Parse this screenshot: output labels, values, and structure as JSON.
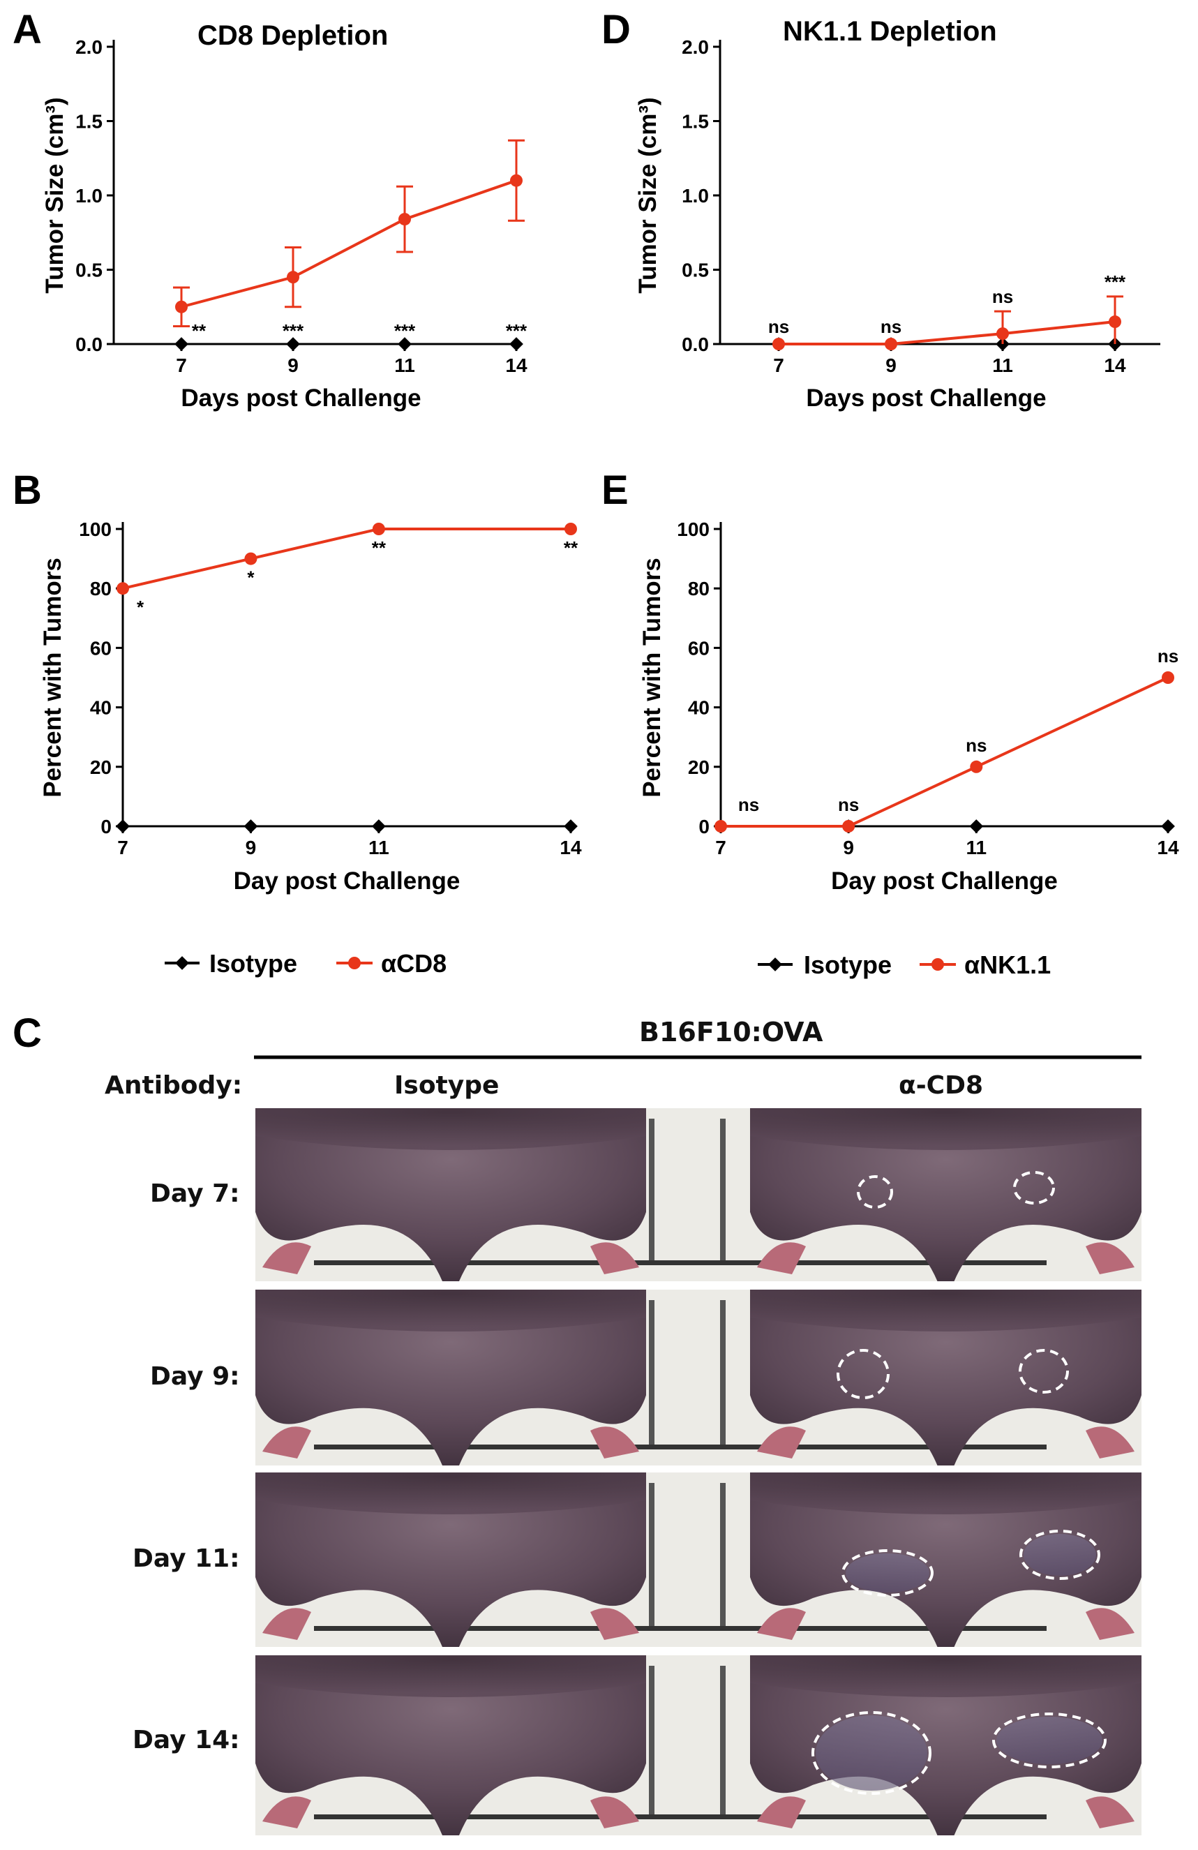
{
  "colors": {
    "isotype": "#000000",
    "treated": "#e8361a",
    "mouse_fur": "#5a4654",
    "mouse_fur_light": "#7a6470",
    "mouse_paw": "#b86a78",
    "background_paper": "#ecebe6"
  },
  "panels": {
    "A": {
      "letter": "A",
      "title": "CD8 Depletion"
    },
    "B": {
      "letter": "B"
    },
    "C": {
      "letter": "C"
    },
    "D": {
      "letter": "D",
      "title": "NK1.1 Depletion"
    },
    "E": {
      "letter": "E"
    }
  },
  "legend_left": {
    "isotype": "Isotype",
    "treated": "αCD8"
  },
  "legend_right": {
    "isotype": "Isotype",
    "treated": "αNK1.1"
  },
  "photo_panel": {
    "group_header": "B16F10:OVA",
    "antibody_label": "Antibody:",
    "columns": [
      "Isotype",
      "α-CD8"
    ],
    "rows": [
      "Day 7:",
      "Day 9:",
      "Day 11:",
      "Day 14:"
    ]
  },
  "chart_data": [
    {
      "id": "A",
      "type": "line",
      "title": "CD8 Depletion",
      "xlabel": "Days post Challenge",
      "ylabel": "Tumor Size (cm³)",
      "categories": [
        "7",
        "9",
        "11",
        "14"
      ],
      "yticks": [
        "0.0",
        "0.5",
        "1.0",
        "1.5",
        "2.0"
      ],
      "ylim": [
        0,
        2.0
      ],
      "series": [
        {
          "name": "Isotype",
          "values": [
            0,
            0,
            0,
            0
          ]
        },
        {
          "name": "αCD8",
          "values": [
            0.25,
            0.45,
            0.84,
            1.1
          ],
          "error": [
            0.13,
            0.2,
            0.22,
            0.27
          ]
        }
      ],
      "significance": [
        "**",
        "***",
        "***",
        "***"
      ]
    },
    {
      "id": "B",
      "type": "line",
      "xlabel": "Day post Challenge",
      "ylabel": "Percent with Tumors",
      "x": [
        7,
        9,
        11,
        14
      ],
      "xticks": [
        "7",
        "9",
        "11",
        "14"
      ],
      "yticks": [
        "0",
        "20",
        "40",
        "60",
        "80",
        "100"
      ],
      "ylim": [
        0,
        100
      ],
      "series": [
        {
          "name": "Isotype",
          "values": [
            0,
            0,
            0,
            0
          ]
        },
        {
          "name": "αCD8",
          "values": [
            80,
            90,
            100,
            100
          ]
        }
      ],
      "significance": [
        "*",
        "*",
        "**",
        "**"
      ]
    },
    {
      "id": "D",
      "type": "line",
      "title": "NK1.1 Depletion",
      "xlabel": "Days post Challenge",
      "ylabel": "Tumor Size (cm³)",
      "categories": [
        "7",
        "9",
        "11",
        "14"
      ],
      "yticks": [
        "0.0",
        "0.5",
        "1.0",
        "1.5",
        "2.0"
      ],
      "ylim": [
        0,
        2.0
      ],
      "series": [
        {
          "name": "Isotype",
          "values": [
            0,
            0,
            0,
            0
          ]
        },
        {
          "name": "αNK1.1",
          "values": [
            0,
            0,
            0.07,
            0.15
          ],
          "error": [
            0,
            0,
            0.15,
            0.17
          ]
        }
      ],
      "significance": [
        "ns",
        "ns",
        "ns",
        "***"
      ]
    },
    {
      "id": "E",
      "type": "line",
      "xlabel": "Day post Challenge",
      "ylabel": "Percent with Tumors",
      "x": [
        7,
        9,
        11,
        14
      ],
      "xticks": [
        "7",
        "9",
        "11",
        "14"
      ],
      "yticks": [
        "0",
        "20",
        "40",
        "60",
        "80",
        "100"
      ],
      "ylim": [
        0,
        100
      ],
      "series": [
        {
          "name": "Isotype",
          "values": [
            0,
            0,
            0,
            0
          ]
        },
        {
          "name": "αNK1.1",
          "values": [
            0,
            0,
            20,
            50
          ]
        }
      ],
      "significance": [
        "ns",
        "ns",
        "ns",
        "ns"
      ]
    }
  ]
}
